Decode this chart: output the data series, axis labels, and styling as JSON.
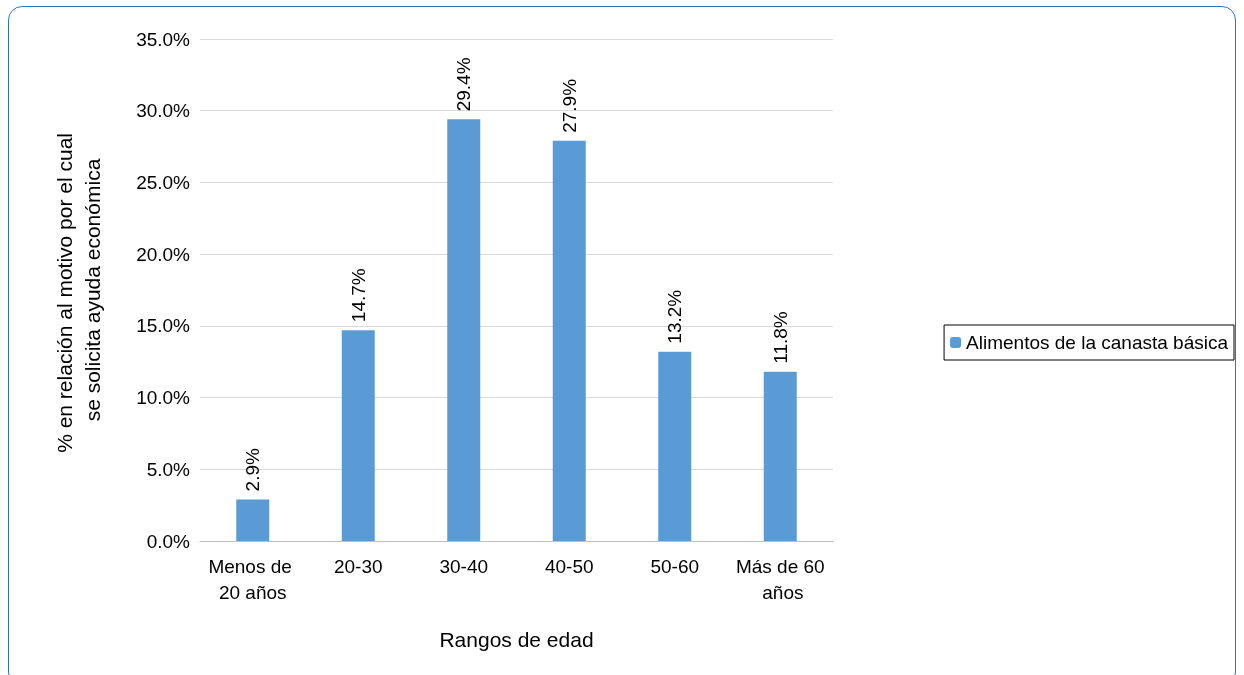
{
  "chart_data": {
    "type": "bar",
    "xlabel": "Rangos de edad",
    "ylabel": "% en relación al motivo por el cual se solicita ayuda económica",
    "categories": [
      "Menos de 20 años",
      "20-30",
      "30-40",
      "40-50",
      "50-60",
      "Más de 60 años"
    ],
    "series": [
      {
        "name": "Alimentos de la canasta básica",
        "color": "#5b9bd5",
        "values": [
          2.9,
          14.7,
          29.4,
          27.9,
          13.2,
          11.8
        ],
        "value_labels": [
          "2.9%",
          "14.7%",
          "29.4%",
          "27.9%",
          "13.2%",
          "11.8%"
        ]
      }
    ],
    "ylim": [
      0,
      35
    ],
    "yticks": [
      {
        "value": 0,
        "label": "0.0%"
      },
      {
        "value": 5,
        "label": "5.0%"
      },
      {
        "value": 10,
        "label": "10.0%"
      },
      {
        "value": 15,
        "label": "15.0%"
      },
      {
        "value": 20,
        "label": "20.0%"
      },
      {
        "value": 25,
        "label": "25.0%"
      },
      {
        "value": 30,
        "label": "30.0%"
      },
      {
        "value": 35,
        "label": "35.0%"
      }
    ],
    "grid": "y",
    "legend": "right"
  }
}
